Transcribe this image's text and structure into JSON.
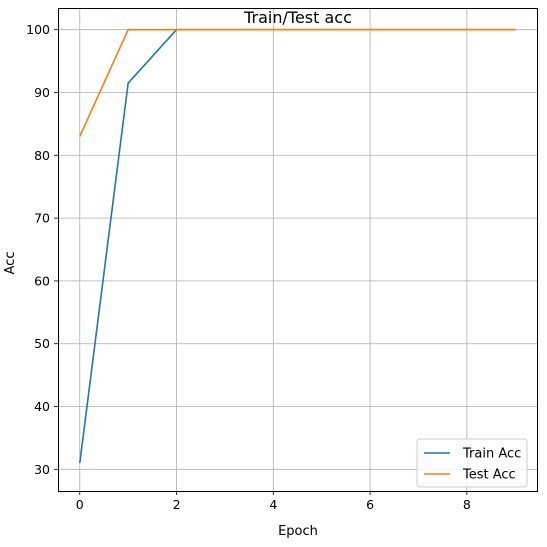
{
  "chart_data": {
    "type": "line",
    "title": "Train/Test acc",
    "xlabel": "Epoch",
    "ylabel": "Acc",
    "x": [
      0,
      1,
      2,
      3,
      4,
      5,
      6,
      7,
      8,
      9
    ],
    "series": [
      {
        "name": "Train Acc",
        "color": "#1f77b4",
        "values": [
          31.0,
          91.5,
          100,
          100,
          100,
          100,
          100,
          100,
          100,
          100
        ]
      },
      {
        "name": "Test Acc",
        "color": "#ff7f0e",
        "values": [
          83.0,
          100,
          100,
          100,
          100,
          100,
          100,
          100,
          100,
          100
        ]
      }
    ],
    "xlim": [
      -0.45,
      9.45
    ],
    "ylim": [
      26.55,
      103.45
    ],
    "xticks": [
      0,
      2,
      4,
      6,
      8
    ],
    "yticks": [
      30,
      40,
      50,
      60,
      70,
      80,
      90,
      100
    ],
    "grid": true,
    "legend": "lower right"
  }
}
